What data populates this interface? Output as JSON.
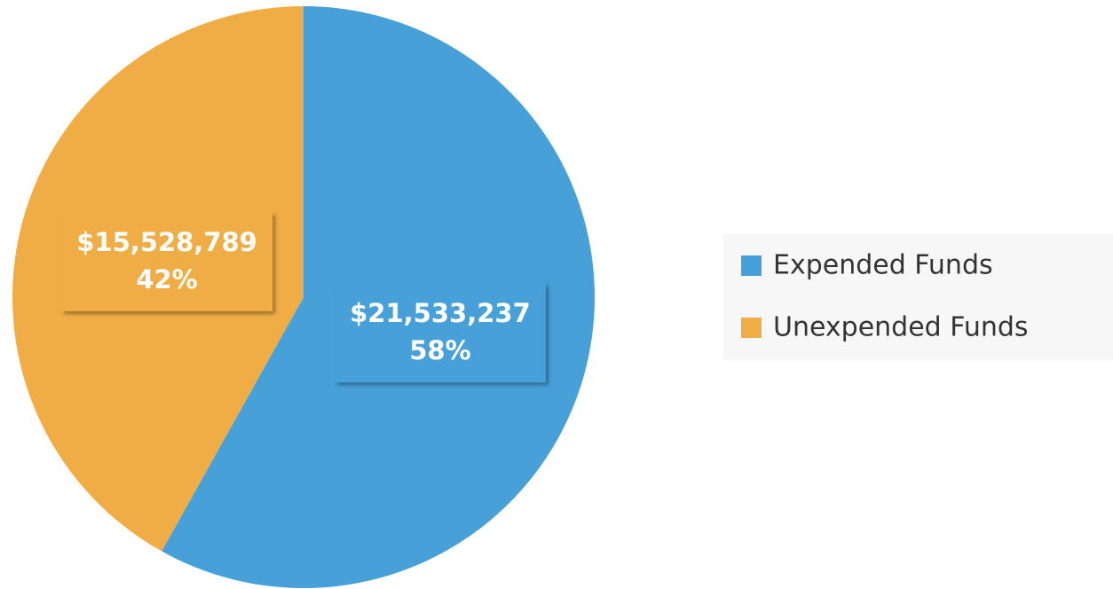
{
  "chart_data": {
    "type": "pie",
    "categories": [
      "Expended Funds",
      "Unexpended Funds"
    ],
    "values": [
      21533237,
      15528789
    ],
    "value_labels": [
      "$21,533,237",
      "$15,528,789"
    ],
    "percent_labels": [
      "58%",
      "42%"
    ],
    "colors": [
      "#47a0d8",
      "#f0ad45"
    ],
    "legend": "right"
  }
}
